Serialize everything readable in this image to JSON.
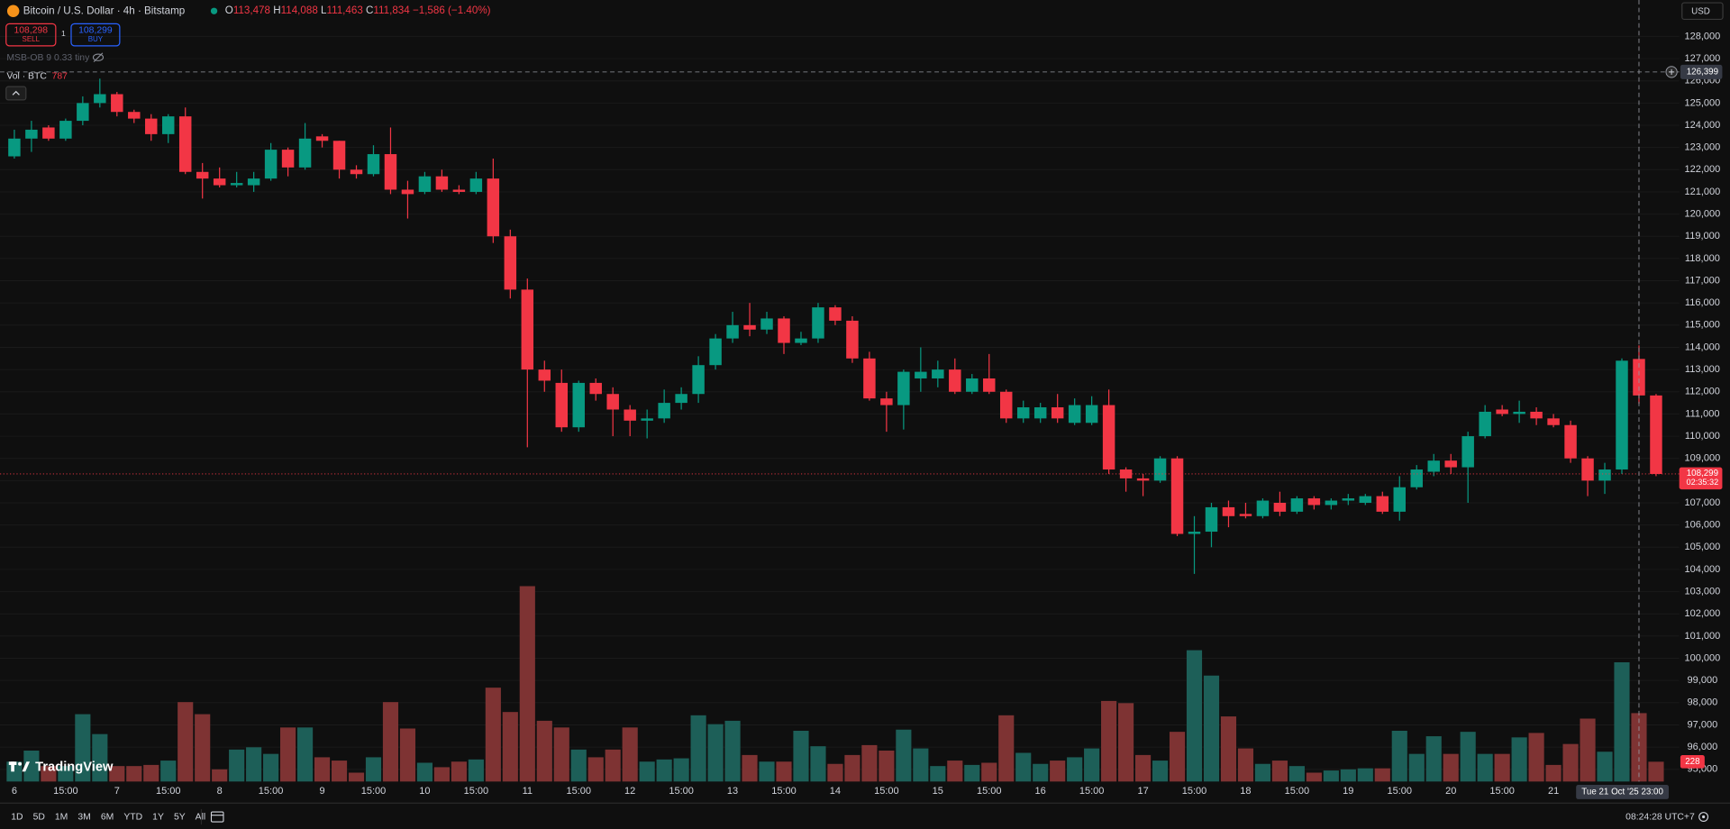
{
  "ui": {
    "symbol": "Bitcoin / U.S. Dollar · 4h · Bitstamp",
    "ohlc": [
      {
        "key": "O",
        "value": "113,478"
      },
      {
        "key": "H",
        "value": "114,088"
      },
      {
        "key": "L",
        "value": "111,463"
      },
      {
        "key": "C",
        "value": "111,834"
      }
    ],
    "change": "−1,586 (−1.40%)",
    "sell": {
      "price": "108,298",
      "label": "SELL"
    },
    "spread": "1",
    "buy": {
      "price": "108,299",
      "label": "BUY"
    },
    "indicator": "MSB-OB 9 0.33 tiny",
    "volume_label": "Vol · BTC",
    "currency": "USD",
    "logo": "TradingView",
    "timeframes": [
      "1D",
      "5D",
      "1M",
      "3M",
      "6M",
      "YTD",
      "1Y",
      "5Y",
      "All"
    ],
    "clock": "08:24:28 UTC+7"
  },
  "chart_data": {
    "type": "candlestick",
    "categories": [
      "6",
      null,
      null,
      "15:00",
      null,
      null,
      "7",
      null,
      null,
      "15:00",
      null,
      null,
      "8",
      null,
      null,
      "15:00",
      null,
      null,
      "9",
      null,
      null,
      "15:00",
      null,
      null,
      "10",
      null,
      null,
      "15:00",
      null,
      null,
      "11",
      null,
      null,
      "15:00",
      null,
      null,
      "12",
      null,
      null,
      "15:00",
      null,
      null,
      "13",
      null,
      null,
      "15:00",
      null,
      null,
      "14",
      null,
      null,
      "15:00",
      null,
      null,
      "15",
      null,
      null,
      "15:00",
      null,
      null,
      "16",
      null,
      null,
      "15:00",
      null,
      null,
      "17",
      null,
      null,
      "15:00",
      null,
      null,
      "18",
      null,
      null,
      "15:00",
      null,
      null,
      "19",
      null,
      null,
      "15:00",
      null,
      null,
      "20",
      null,
      null,
      "15:00",
      null,
      null,
      "21",
      null,
      null,
      null,
      null,
      null,
      null
    ],
    "open": [
      122600,
      123400,
      123900,
      123400,
      124200,
      125000,
      125400,
      124600,
      124300,
      123600,
      124400,
      121900,
      121600,
      121300,
      121300,
      121600,
      122900,
      122100,
      123500,
      123300,
      122000,
      121800,
      122700,
      121100,
      121000,
      121700,
      121100,
      121000,
      121600,
      119000,
      116600,
      113000,
      112400,
      110400,
      112400,
      111900,
      111200,
      110700,
      110800,
      111500,
      111900,
      113200,
      114400,
      115000,
      114800,
      115300,
      114200,
      114400,
      115800,
      115200,
      113500,
      111700,
      111400,
      112600,
      112600,
      113000,
      112000,
      112600,
      112000,
      110800,
      110800,
      111300,
      110600,
      110600,
      111400,
      108500,
      108100,
      108000,
      109000,
      105600,
      105700,
      106800,
      106500,
      106400,
      107000,
      106600,
      107200,
      106900,
      107100,
      107000,
      107300,
      106600,
      107700,
      108400,
      108900,
      108600,
      110000,
      111200,
      111000,
      111100,
      110800,
      110500,
      109000,
      108000,
      108500,
      113478,
      111834
    ],
    "high": [
      123800,
      124200,
      124000,
      124300,
      125300,
      126100,
      125500,
      124700,
      124500,
      124500,
      124800,
      122300,
      122100,
      121900,
      121900,
      123200,
      123000,
      124100,
      123600,
      123300,
      122200,
      123100,
      123900,
      121500,
      121900,
      122000,
      121300,
      121900,
      122500,
      119300,
      117100,
      113400,
      113000,
      112500,
      112600,
      112200,
      111400,
      111200,
      112100,
      112200,
      113600,
      114600,
      115600,
      116000,
      115600,
      115400,
      114700,
      116000,
      115900,
      115400,
      113800,
      112000,
      113000,
      114000,
      113400,
      113500,
      112800,
      113700,
      112100,
      111600,
      111500,
      111900,
      111700,
      111800,
      112100,
      108600,
      108300,
      109100,
      109100,
      106400,
      107000,
      107100,
      107000,
      107200,
      107500,
      107300,
      107300,
      107200,
      107400,
      107400,
      107500,
      108200,
      108700,
      109200,
      109200,
      110200,
      111400,
      111400,
      111600,
      111300,
      111000,
      110700,
      109100,
      108800,
      113500,
      114088,
      111900
    ],
    "low": [
      122500,
      122800,
      123300,
      123300,
      124000,
      124800,
      124400,
      124100,
      123300,
      123200,
      121800,
      120700,
      121200,
      121200,
      121000,
      121500,
      121700,
      122000,
      123000,
      121600,
      121600,
      121700,
      120900,
      119800,
      120900,
      121000,
      120900,
      120900,
      118700,
      116200,
      109500,
      112000,
      110200,
      110200,
      111600,
      110000,
      110000,
      109900,
      110600,
      111200,
      111500,
      113000,
      114200,
      114500,
      114600,
      113700,
      114100,
      114200,
      115000,
      113300,
      111600,
      110200,
      110300,
      112000,
      112200,
      111900,
      111900,
      111900,
      110600,
      110600,
      110600,
      110600,
      110500,
      110500,
      108300,
      107500,
      107300,
      107900,
      105500,
      103800,
      105000,
      105900,
      106300,
      106300,
      106400,
      106500,
      106700,
      106700,
      106900,
      106900,
      106500,
      106200,
      107600,
      108200,
      108300,
      107000,
      109900,
      110900,
      110600,
      110500,
      110400,
      108800,
      107300,
      107400,
      108300,
      111463,
      108200
    ],
    "close": [
      123400,
      123800,
      123400,
      124200,
      125000,
      125400,
      124600,
      124300,
      123600,
      124400,
      121900,
      121600,
      121300,
      121400,
      121600,
      122900,
      122100,
      123400,
      123300,
      122000,
      121800,
      122700,
      121100,
      120900,
      121700,
      121100,
      121000,
      121600,
      119000,
      116600,
      113000,
      112500,
      110400,
      112400,
      111900,
      111200,
      110700,
      110800,
      111500,
      111900,
      113200,
      114400,
      115000,
      114800,
      115300,
      114200,
      114400,
      115800,
      115200,
      113500,
      111700,
      111400,
      112900,
      112900,
      113000,
      112000,
      112600,
      112000,
      110800,
      111300,
      111300,
      110800,
      111400,
      111400,
      108500,
      108100,
      108000,
      109000,
      105600,
      105700,
      106800,
      106400,
      106400,
      107100,
      106600,
      107200,
      106900,
      107100,
      107200,
      107300,
      106600,
      107700,
      108500,
      108900,
      108600,
      110000,
      111100,
      111000,
      111100,
      110800,
      110500,
      109000,
      108000,
      108500,
      113400,
      111834,
      108299
    ],
    "volume": [
      229,
      356,
      178,
      178,
      775,
      546,
      178,
      178,
      191,
      241,
      914,
      775,
      140,
      368,
      394,
      318,
      622,
      622,
      279,
      241,
      102,
      279,
      914,
      610,
      216,
      165,
      229,
      254,
      1080,
      800,
      2248,
      699,
      622,
      368,
      279,
      368,
      622,
      229,
      254,
      267,
      762,
      660,
      699,
      305,
      229,
      229,
      584,
      406,
      203,
      305,
      419,
      356,
      597,
      381,
      178,
      241,
      191,
      216,
      762,
      330,
      203,
      241,
      279,
      381,
      927,
      902,
      305,
      241,
      572,
      1511,
      1219,
      749,
      381,
      203,
      241,
      178,
      102,
      127,
      140,
      152,
      152,
      584,
      318,
      521,
      318,
      572,
      318,
      318,
      508,
      559,
      191,
      432,
      724,
      343,
      1372,
      787,
      228
    ],
    "colors": {
      "up": "#089981",
      "down": "#f23645"
    },
    "volume_colors": {
      "up": "#1d5f58",
      "down": "#7e3333"
    },
    "ylim": [
      94450,
      129640
    ],
    "yticks": [
      {
        "value": 128000,
        "label": "128,000"
      },
      {
        "value": 127000,
        "label": "127,000"
      },
      {
        "value": 126000,
        "label": "126,000"
      },
      {
        "value": 125000,
        "label": "125,000"
      },
      {
        "value": 124000,
        "label": "124,000"
      },
      {
        "value": 123000,
        "label": "123,000"
      },
      {
        "value": 122000,
        "label": "122,000"
      },
      {
        "value": 121000,
        "label": "121,000"
      },
      {
        "value": 120000,
        "label": "120,000"
      },
      {
        "value": 119000,
        "label": "119,000"
      },
      {
        "value": 118000,
        "label": "118,000"
      },
      {
        "value": 117000,
        "label": "117,000"
      },
      {
        "value": 116000,
        "label": "116,000"
      },
      {
        "value": 115000,
        "label": "115,000"
      },
      {
        "value": 114000,
        "label": "114,000"
      },
      {
        "value": 113000,
        "label": "113,000"
      },
      {
        "value": 112000,
        "label": "112,000"
      },
      {
        "value": 111000,
        "label": "111,000"
      },
      {
        "value": 110000,
        "label": "110,000"
      },
      {
        "value": 109000,
        "label": "109,000"
      },
      {
        "value": 108000,
        "label": "108,000"
      },
      {
        "value": 107000,
        "label": "107,000"
      },
      {
        "value": 106000,
        "label": "106,000"
      },
      {
        "value": 105000,
        "label": "105,000"
      },
      {
        "value": 104000,
        "label": "104,000"
      },
      {
        "value": 103000,
        "label": "103,000"
      },
      {
        "value": 102000,
        "label": "102,000"
      },
      {
        "value": 101000,
        "label": "101,000"
      },
      {
        "value": 100000,
        "label": "100,000"
      },
      {
        "value": 99000,
        "label": "99,000"
      },
      {
        "value": 98000,
        "label": "98,000"
      },
      {
        "value": 97000,
        "label": "97,000"
      },
      {
        "value": 96000,
        "label": "96,000"
      },
      {
        "value": 95000,
        "label": "95,000"
      }
    ],
    "y2lim": [
      0,
      8992
    ],
    "grid": true,
    "crosshair": {
      "value": 126399,
      "label": "126,399",
      "time_label": "Tue 21 Oct '25  23:00"
    },
    "last_price": {
      "value": 108299,
      "label": "108,299",
      "countdown": "02:35:32"
    }
  }
}
